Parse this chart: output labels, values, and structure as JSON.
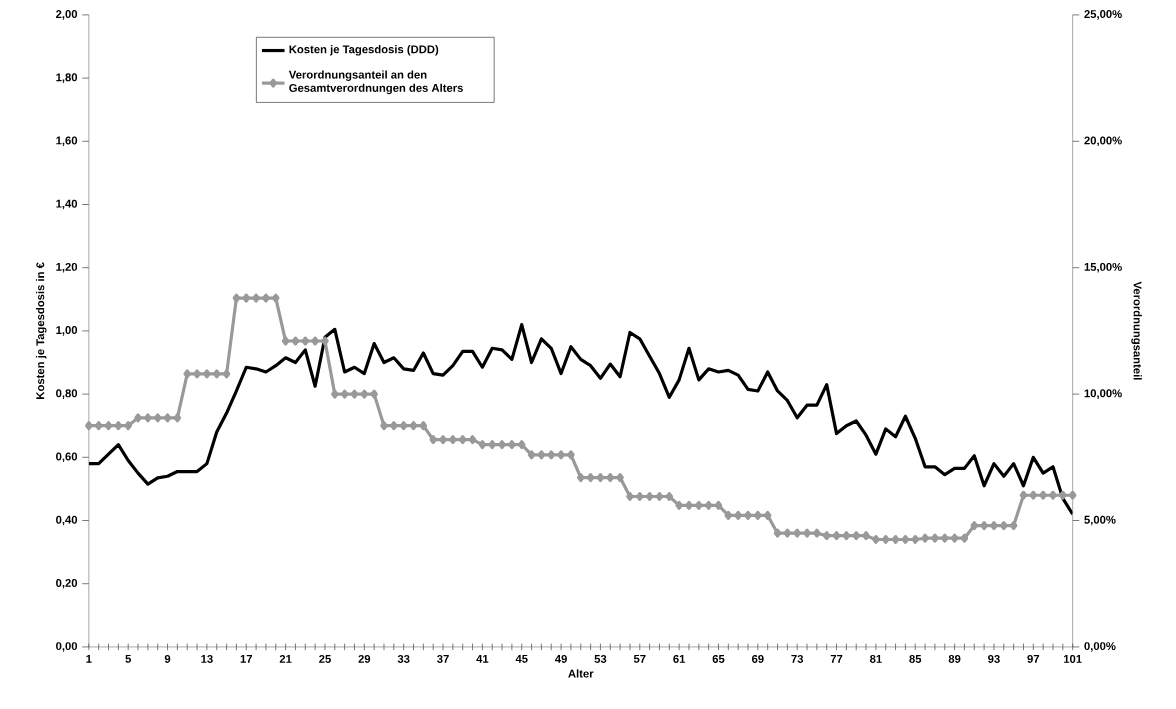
{
  "chart_data": {
    "type": "line",
    "xlabel": "Alter",
    "ylabel": "Kosten je Tagesdosis in €",
    "y2label": "Verordnungsanteil",
    "categories": [
      "1",
      null,
      null,
      null,
      "5",
      null,
      null,
      null,
      "9",
      null,
      null,
      null,
      "13",
      null,
      null,
      null,
      "17",
      null,
      null,
      null,
      "21",
      null,
      null,
      null,
      "25",
      null,
      null,
      null,
      "29",
      null,
      null,
      null,
      "33",
      null,
      null,
      null,
      "37",
      null,
      null,
      null,
      "41",
      null,
      null,
      null,
      "45",
      null,
      null,
      null,
      "49",
      null,
      null,
      null,
      "53",
      null,
      null,
      null,
      "57",
      null,
      null,
      null,
      "61",
      null,
      null,
      null,
      "65",
      null,
      null,
      null,
      "69",
      null,
      null,
      null,
      "73",
      null,
      null,
      null,
      "77",
      null,
      null,
      null,
      "81",
      null,
      null,
      null,
      "85",
      null,
      null,
      null,
      "89",
      null,
      null,
      null,
      "93",
      null,
      null,
      null,
      "97",
      null,
      null,
      null,
      "101"
    ],
    "series": [
      {
        "name": "Kosten je Tagesdosis (DDD)",
        "color": "#000000",
        "marker": "none",
        "values": [
          0.58,
          0.58,
          0.61,
          0.64,
          0.59,
          0.55,
          0.515,
          0.535,
          0.54,
          0.555,
          0.555,
          0.555,
          0.58,
          0.68,
          0.74,
          0.81,
          0.885,
          0.88,
          0.87,
          0.89,
          0.915,
          0.9,
          0.94,
          0.825,
          0.98,
          1.005,
          0.87,
          0.885,
          0.865,
          0.96,
          0.9,
          0.915,
          0.88,
          0.875,
          0.93,
          0.865,
          0.86,
          0.89,
          0.935,
          0.935,
          0.885,
          0.945,
          0.94,
          0.91,
          1.02,
          0.9,
          0.975,
          0.945,
          0.865,
          0.95,
          0.91,
          0.89,
          0.85,
          0.895,
          0.855,
          0.995,
          0.975,
          0.92,
          0.865,
          0.79,
          0.845,
          0.945,
          0.845,
          0.88,
          0.87,
          0.875,
          0.86,
          0.815,
          0.81,
          0.87,
          0.81,
          0.78,
          0.725,
          0.765,
          0.765,
          0.83,
          0.675,
          0.7,
          0.715,
          0.67,
          0.61,
          0.69,
          0.665,
          0.73,
          0.66,
          0.57,
          0.57,
          0.545,
          0.565,
          0.565,
          0.605,
          0.51,
          0.58,
          0.54,
          0.58,
          0.51,
          0.6,
          0.55,
          0.57,
          0.47,
          0.42
        ]
      },
      {
        "name": "Verordnungsanteil an den Gesamtverordnungen des Alters",
        "color": "#999999",
        "marker": "diamond",
        "axis": "y2",
        "values": [
          8.75,
          8.75,
          8.75,
          8.75,
          8.75,
          9.06,
          9.06,
          9.06,
          9.06,
          9.06,
          10.8,
          10.8,
          10.8,
          10.8,
          10.8,
          13.8,
          13.8,
          13.8,
          13.8,
          13.8,
          12.1,
          12.1,
          12.1,
          12.1,
          12.1,
          10.0,
          10.0,
          10.0,
          10.0,
          10.0,
          8.75,
          8.75,
          8.75,
          8.75,
          8.75,
          8.2,
          8.2,
          8.2,
          8.2,
          8.2,
          8.0,
          8.0,
          8.0,
          8.0,
          8.0,
          7.6,
          7.6,
          7.6,
          7.6,
          7.6,
          6.7,
          6.7,
          6.7,
          6.7,
          6.7,
          5.95,
          5.95,
          5.95,
          5.95,
          5.95,
          5.6,
          5.6,
          5.6,
          5.6,
          5.6,
          5.2,
          5.2,
          5.2,
          5.2,
          5.2,
          4.5,
          4.5,
          4.5,
          4.5,
          4.5,
          4.4,
          4.4,
          4.4,
          4.4,
          4.4,
          4.25,
          4.25,
          4.25,
          4.25,
          4.25,
          4.3,
          4.3,
          4.3,
          4.3,
          4.3,
          4.8,
          4.8,
          4.8,
          4.8,
          4.8,
          6.0,
          6.0,
          6.0,
          6.0,
          6.0,
          6.0
        ]
      }
    ],
    "ylim": [
      0,
      2
    ],
    "yticks": [
      {
        "value": 0,
        "label": "0,00"
      },
      {
        "value": 0.2,
        "label": "0,20"
      },
      {
        "value": 0.4,
        "label": "0,40"
      },
      {
        "value": 0.6,
        "label": "0,60"
      },
      {
        "value": 0.8,
        "label": "0,80"
      },
      {
        "value": 1.0,
        "label": "1,00"
      },
      {
        "value": 1.2,
        "label": "1,20"
      },
      {
        "value": 1.4,
        "label": "1,40"
      },
      {
        "value": 1.6,
        "label": "1,60"
      },
      {
        "value": 1.8,
        "label": "1,80"
      },
      {
        "value": 2.0,
        "label": "2,00"
      }
    ],
    "y2lim": [
      0,
      25
    ],
    "y2ticks": [
      {
        "value": 0,
        "label": "0,00%"
      },
      {
        "value": 5,
        "label": "5,00%"
      },
      {
        "value": 10,
        "label": "10,00%"
      },
      {
        "value": 15,
        "label": "15,00%"
      },
      {
        "value": 20,
        "label": "20,00%"
      },
      {
        "value": 25,
        "label": "25,00%"
      }
    ],
    "grid": false,
    "legend": "top left"
  }
}
